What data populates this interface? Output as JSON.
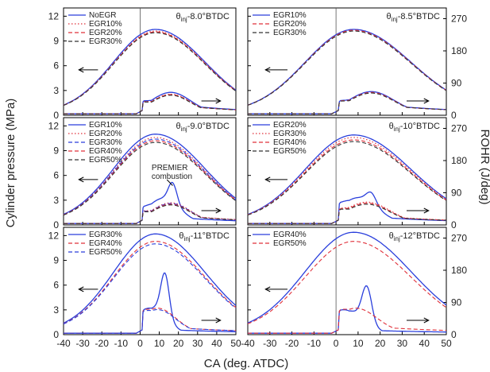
{
  "figure": {
    "ylabel_left": "Cylinder pressure (MPa)",
    "ylabel_right": "ROHR (J/deg)",
    "xlabel": "CA (deg. ATDC)",
    "x_ticks": [
      "-40",
      "-30",
      "-20",
      "-10",
      "0",
      "10",
      "20",
      "30",
      "40",
      "50"
    ],
    "left_y_ticks": [
      "0",
      "3",
      "6",
      "9",
      "12"
    ],
    "right_y_ticks": [
      "0",
      "90",
      "180",
      "270"
    ],
    "theta_prefix": "θ",
    "theta_sub": "inj",
    "colors": {
      "solid_blue": "#2a3fdc",
      "red_dash": "#e0303a",
      "black_dash": "#333333",
      "axis": "#000000"
    }
  },
  "chart_data": [
    {
      "type": "line",
      "panel": "top-left",
      "injection_label": "-8.0°BTDC",
      "xlim": [
        -40,
        50
      ],
      "ylim_pressure": [
        0,
        13
      ],
      "ylim_rohr": [
        0,
        300
      ],
      "legend_placement": "top-left",
      "series": [
        {
          "name": "NoEGR",
          "style": "solid",
          "color": "#2a3fdc",
          "peak_pressure": 10.4,
          "pressure_width": 30,
          "rohr": {
            "prem_pos": 9,
            "prem_h": 0,
            "diff_pos": 16,
            "diff_h": 60,
            "diff_w": 24,
            "tail": 28
          }
        },
        {
          "name": "EGR10%",
          "style": "dot",
          "color": "#e0303a",
          "peak_pressure": 10.2,
          "pressure_width": 30,
          "rohr": {
            "prem_pos": 9,
            "prem_h": 0,
            "diff_pos": 16,
            "diff_h": 55,
            "diff_w": 24,
            "tail": 26
          }
        },
        {
          "name": "EGR20%",
          "style": "dash",
          "color": "#e0303a",
          "peak_pressure": 10.1,
          "pressure_width": 30,
          "rohr": {
            "prem_pos": 9,
            "prem_h": 0,
            "diff_pos": 16,
            "diff_h": 54,
            "diff_w": 24,
            "tail": 26
          }
        },
        {
          "name": "EGR30%",
          "style": "dash",
          "color": "#333333",
          "peak_pressure": 10.0,
          "pressure_width": 30,
          "rohr": {
            "prem_pos": 9,
            "prem_h": 0,
            "diff_pos": 16,
            "diff_h": 52,
            "diff_w": 24,
            "tail": 26
          }
        }
      ]
    },
    {
      "type": "line",
      "panel": "top-right",
      "injection_label": "-8.5°BTDC",
      "xlim": [
        -40,
        50
      ],
      "ylim_pressure": [
        0,
        13
      ],
      "ylim_rohr": [
        0,
        300
      ],
      "legend_placement": "top-left",
      "series": [
        {
          "name": "EGR10%",
          "style": "solid",
          "color": "#2a3fdc",
          "peak_pressure": 10.4,
          "pressure_width": 30,
          "rohr": {
            "prem_pos": 9,
            "prem_h": 0,
            "diff_pos": 16,
            "diff_h": 62,
            "diff_w": 24,
            "tail": 28
          }
        },
        {
          "name": "EGR20%",
          "style": "dash",
          "color": "#e0303a",
          "peak_pressure": 10.3,
          "pressure_width": 30,
          "rohr": {
            "prem_pos": 9,
            "prem_h": 0,
            "diff_pos": 16,
            "diff_h": 60,
            "diff_w": 24,
            "tail": 27
          }
        },
        {
          "name": "EGR30%",
          "style": "dash",
          "color": "#333333",
          "peak_pressure": 10.2,
          "pressure_width": 30,
          "rohr": {
            "prem_pos": 9,
            "prem_h": 0,
            "diff_pos": 16,
            "diff_h": 58,
            "diff_w": 24,
            "tail": 27
          }
        }
      ]
    },
    {
      "type": "line",
      "panel": "middle-left",
      "injection_label": "-9.0°BTDC",
      "annotation": [
        "PREMIER",
        "combustion"
      ],
      "xlim": [
        -40,
        50
      ],
      "ylim_pressure": [
        0,
        13
      ],
      "ylim_rohr": [
        0,
        300
      ],
      "legend_placement": "top-left",
      "series": [
        {
          "name": "EGR10%",
          "style": "solid",
          "color": "#2a3fdc",
          "peak_pressure": 11.0,
          "pressure_width": 30,
          "rohr": {
            "prem_pos": 17,
            "prem_h": 55,
            "diff_pos": 12,
            "diff_h": 70,
            "diff_w": 20,
            "tail": 20
          }
        },
        {
          "name": "EGR20%",
          "style": "dot",
          "color": "#e0303a",
          "peak_pressure": 10.6,
          "pressure_width": 30,
          "rohr": {
            "prem_pos": 9,
            "prem_h": 0,
            "diff_pos": 16,
            "diff_h": 58,
            "diff_w": 24,
            "tail": 26
          }
        },
        {
          "name": "EGR30%",
          "style": "dash",
          "color": "#2a3fdc",
          "peak_pressure": 10.4,
          "pressure_width": 30,
          "rohr": {
            "prem_pos": 9,
            "prem_h": 0,
            "diff_pos": 16,
            "diff_h": 56,
            "diff_w": 24,
            "tail": 25
          }
        },
        {
          "name": "EGR40%",
          "style": "dash",
          "color": "#e0303a",
          "peak_pressure": 10.2,
          "pressure_width": 30,
          "rohr": {
            "prem_pos": 9,
            "prem_h": 0,
            "diff_pos": 16,
            "diff_h": 54,
            "diff_w": 24,
            "tail": 25
          }
        },
        {
          "name": "EGR50%",
          "style": "dash",
          "color": "#333333",
          "peak_pressure": 10.0,
          "pressure_width": 30,
          "rohr": {
            "prem_pos": 9,
            "prem_h": 0,
            "diff_pos": 16,
            "diff_h": 52,
            "diff_w": 24,
            "tail": 24
          }
        }
      ]
    },
    {
      "type": "line",
      "panel": "middle-right",
      "injection_label": "-10°BTDC",
      "xlim": [
        -40,
        50
      ],
      "ylim_pressure": [
        0,
        13
      ],
      "ylim_rohr": [
        0,
        300
      ],
      "legend_placement": "top-left",
      "series": [
        {
          "name": "EGR20%",
          "style": "solid",
          "color": "#2a3fdc",
          "peak_pressure": 10.9,
          "pressure_width": 30,
          "rohr": {
            "prem_pos": 16,
            "prem_h": 30,
            "diff_pos": 10,
            "diff_h": 72,
            "diff_w": 20,
            "tail": 22
          }
        },
        {
          "name": "EGR30%",
          "style": "dot",
          "color": "#e0303a",
          "peak_pressure": 10.6,
          "pressure_width": 30,
          "rohr": {
            "prem_pos": 9,
            "prem_h": 0,
            "diff_pos": 14,
            "diff_h": 60,
            "diff_w": 24,
            "tail": 24
          }
        },
        {
          "name": "EGR40%",
          "style": "dash",
          "color": "#e0303a",
          "peak_pressure": 10.3,
          "pressure_width": 30,
          "rohr": {
            "prem_pos": 9,
            "prem_h": 0,
            "diff_pos": 14,
            "diff_h": 57,
            "diff_w": 24,
            "tail": 23
          }
        },
        {
          "name": "EGR50%",
          "style": "dash",
          "color": "#333333",
          "peak_pressure": 10.1,
          "pressure_width": 30,
          "rohr": {
            "prem_pos": 9,
            "prem_h": 0,
            "diff_pos": 14,
            "diff_h": 54,
            "diff_w": 24,
            "tail": 22
          }
        }
      ]
    },
    {
      "type": "line",
      "panel": "bottom-left",
      "injection_label": "-11°BTDC",
      "xlim": [
        -40,
        50
      ],
      "ylim_pressure": [
        0,
        13
      ],
      "ylim_rohr": [
        0,
        300
      ],
      "legend_placement": "top-left",
      "series": [
        {
          "name": "EGR30%",
          "style": "solid",
          "color": "#2a3fdc",
          "peak_pressure": 12.2,
          "pressure_width": 30,
          "rohr": {
            "prem_pos": 13,
            "prem_h": 120,
            "diff_pos": 7,
            "diff_h": 70,
            "diff_w": 16,
            "tail": 12
          }
        },
        {
          "name": "EGR40%",
          "style": "dash",
          "color": "#e0303a",
          "peak_pressure": 11.3,
          "pressure_width": 30,
          "rohr": {
            "prem_pos": 9,
            "prem_h": 0,
            "diff_pos": 9,
            "diff_h": 70,
            "diff_w": 22,
            "tail": 20
          }
        },
        {
          "name": "EGR50%",
          "style": "dash",
          "color": "#2a3fdc",
          "peak_pressure": 11.0,
          "pressure_width": 30,
          "rohr": {
            "prem_pos": 9,
            "prem_h": 0,
            "diff_pos": 9,
            "diff_h": 66,
            "diff_w": 22,
            "tail": 20
          }
        }
      ]
    },
    {
      "type": "line",
      "panel": "bottom-right",
      "injection_label": "-12°BTDC",
      "xlim": [
        -40,
        50
      ],
      "ylim_pressure": [
        0,
        13
      ],
      "ylim_rohr": [
        0,
        300
      ],
      "legend_placement": "top-left",
      "series": [
        {
          "name": "EGR40%",
          "style": "solid",
          "color": "#2a3fdc",
          "peak_pressure": 12.4,
          "pressure_width": 30,
          "rohr": {
            "prem_pos": 14,
            "prem_h": 100,
            "diff_pos": 6,
            "diff_h": 62,
            "diff_w": 16,
            "tail": 10
          }
        },
        {
          "name": "EGR50%",
          "style": "dash",
          "color": "#e0303a",
          "peak_pressure": 11.3,
          "pressure_width": 30,
          "rohr": {
            "prem_pos": 9,
            "prem_h": 0,
            "diff_pos": 9,
            "diff_h": 70,
            "diff_w": 22,
            "tail": 22
          }
        }
      ]
    }
  ]
}
